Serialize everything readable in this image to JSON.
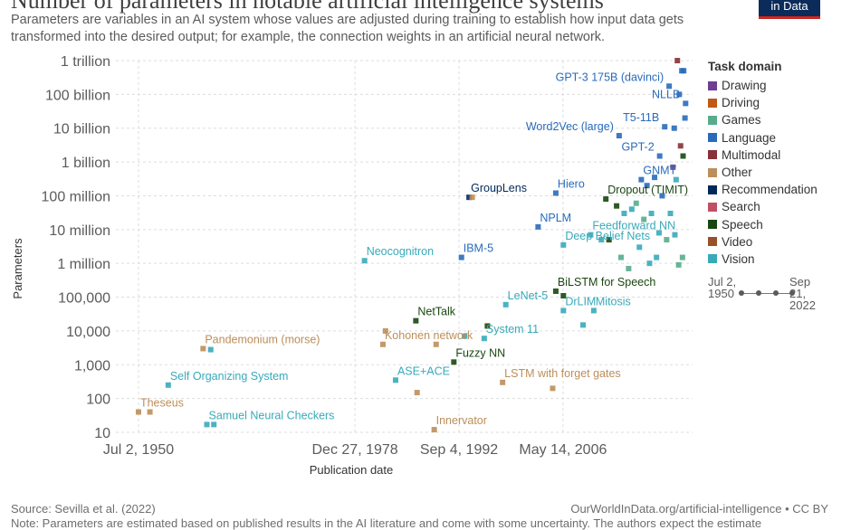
{
  "header": {
    "title": "Number of parameters in notable artificial intelligence systems",
    "subtitle": "Parameters are variables in an AI system whose values are adjusted during training to establish how input data gets transformed into the desired output; for example, the connection weights in an artificial neural network.",
    "logo_text": "in Data"
  },
  "chart_data": {
    "type": "scatter",
    "title": "Number of parameters in notable artificial intelligence systems",
    "xlabel": "Publication date",
    "ylabel": "Parameters",
    "log_y": true,
    "x_range": [
      "1948-01-01",
      "2023-06-01"
    ],
    "y_range": [
      10,
      1000000000000
    ],
    "x_ticks": [
      {
        "date": "1950-07-02",
        "label": "Jul 2, 1950"
      },
      {
        "date": "1978-12-27",
        "label": "Dec 27, 1978"
      },
      {
        "date": "1992-09-04",
        "label": "Sep 4, 1992"
      },
      {
        "date": "2006-05-14",
        "label": "May 14, 2006"
      }
    ],
    "y_ticks": [
      {
        "value": 10,
        "label": "10"
      },
      {
        "value": 100,
        "label": "100"
      },
      {
        "value": 1000,
        "label": "1,000"
      },
      {
        "value": 10000,
        "label": "10,000"
      },
      {
        "value": 100000,
        "label": "100,000"
      },
      {
        "value": 1000000,
        "label": "1 million"
      },
      {
        "value": 10000000,
        "label": "10 million"
      },
      {
        "value": 100000000,
        "label": "100 million"
      },
      {
        "value": 1000000000,
        "label": "1 billion"
      },
      {
        "value": 10000000000,
        "label": "10 billion"
      },
      {
        "value": 100000000000,
        "label": "100 billion"
      },
      {
        "value": 1000000000000,
        "label": "1 trillion"
      }
    ],
    "grid": true,
    "legend_position": "right",
    "domains": [
      {
        "name": "Drawing",
        "color": "#6d3e91"
      },
      {
        "name": "Driving",
        "color": "#c05917"
      },
      {
        "name": "Games",
        "color": "#58ac8c"
      },
      {
        "name": "Language",
        "color": "#286bbb"
      },
      {
        "name": "Multimodal",
        "color": "#883039"
      },
      {
        "name": "Other",
        "color": "#bc8e5a"
      },
      {
        "name": "Recommendation",
        "color": "#00295b"
      },
      {
        "name": "Search",
        "color": "#c15065"
      },
      {
        "name": "Speech",
        "color": "#18470f"
      },
      {
        "name": "Video",
        "color": "#9a5129"
      },
      {
        "name": "Vision",
        "color": "#38aaba"
      }
    ],
    "points": [
      {
        "date": "1950-07-02",
        "value": 40,
        "domain": "Other",
        "label": "Theseus"
      },
      {
        "date": "1952-01-01",
        "value": 40,
        "domain": "Other"
      },
      {
        "date": "1954-06-01",
        "value": 250,
        "domain": "Vision",
        "label": "Self Organizing System"
      },
      {
        "date": "1959-01-01",
        "value": 3000,
        "domain": "Other",
        "label": "Pandemonium (morse)"
      },
      {
        "date": "1959-07-01",
        "value": 17,
        "domain": "Vision",
        "label": "Samuel Neural Checkers"
      },
      {
        "date": "1960-01-01",
        "value": 2800,
        "domain": "Vision"
      },
      {
        "date": "1960-06-01",
        "value": 17,
        "domain": "Vision"
      },
      {
        "date": "1980-04-01",
        "value": 1200000,
        "domain": "Vision",
        "label": "Neocognitron"
      },
      {
        "date": "1982-09-01",
        "value": 4000,
        "domain": "Other",
        "label": "Kohonen network"
      },
      {
        "date": "1983-01-01",
        "value": 10000,
        "domain": "Other"
      },
      {
        "date": "1984-05-01",
        "value": 350,
        "domain": "Vision",
        "label": "ASE+ACE"
      },
      {
        "date": "1987-01-01",
        "value": 20000,
        "domain": "Speech",
        "label": "NetTalk"
      },
      {
        "date": "1987-03-01",
        "value": 150,
        "domain": "Other"
      },
      {
        "date": "1989-09-01",
        "value": 4000,
        "domain": "Other"
      },
      {
        "date": "1992-01-01",
        "value": 1200,
        "domain": "Speech",
        "label": "Fuzzy NN"
      },
      {
        "date": "1993-01-01",
        "value": 1500000,
        "domain": "Language",
        "label": "IBM-5"
      },
      {
        "date": "1993-06-01",
        "value": 7000,
        "domain": "Vision"
      },
      {
        "date": "1989-06-01",
        "value": 12,
        "domain": "Other",
        "label": "Innervator"
      },
      {
        "date": "1994-01-01",
        "value": 90000000,
        "domain": "Recommendation",
        "label": "GroupLens"
      },
      {
        "date": "1994-06-01",
        "value": 90000000,
        "domain": "Other"
      },
      {
        "date": "1996-01-01",
        "value": 6000,
        "domain": "Vision",
        "label": "System 11"
      },
      {
        "date": "1996-06-01",
        "value": 14000,
        "domain": "Speech"
      },
      {
        "date": "1998-11-01",
        "value": 60000,
        "domain": "Vision",
        "label": "LeNet-5"
      },
      {
        "date": "1998-06-01",
        "value": 300,
        "domain": "Other",
        "label": "LSTM with forget gates"
      },
      {
        "date": "2003-02-01",
        "value": 12000000,
        "domain": "Language",
        "label": "NPLM"
      },
      {
        "date": "2005-06-01",
        "value": 120000000,
        "domain": "Language",
        "label": "Hiero"
      },
      {
        "date": "2005-01-01",
        "value": 200,
        "domain": "Other"
      },
      {
        "date": "2005-06-01",
        "value": 150000,
        "domain": "Speech",
        "label": "BiLSTM for Speech"
      },
      {
        "date": "2006-06-01",
        "value": 40000,
        "domain": "Vision",
        "label": "DrLIM"
      },
      {
        "date": "2006-06-01",
        "value": 3500000,
        "domain": "Vision",
        "label": "Deep Belief Nets"
      },
      {
        "date": "2006-06-01",
        "value": 110000,
        "domain": "Speech"
      },
      {
        "date": "2009-01-01",
        "value": 15000,
        "domain": "Vision"
      },
      {
        "date": "2010-06-01",
        "value": 40000,
        "domain": "Vision",
        "label": "Mitosis"
      },
      {
        "date": "2010-01-01",
        "value": 7000000,
        "domain": "Vision",
        "label": "Feedforward NN"
      },
      {
        "date": "2012-01-01",
        "value": 80000000,
        "domain": "Speech",
        "label": "Dropout (TIMIT)"
      },
      {
        "date": "2013-10-01",
        "value": 6000000000,
        "domain": "Language",
        "label": "Word2Vec (large)"
      },
      {
        "date": "2016-09-01",
        "value": 300000000,
        "domain": "Language",
        "label": "GNMT"
      },
      {
        "date": "2019-02-01",
        "value": 1500000000,
        "domain": "Language",
        "label": "GPT-2"
      },
      {
        "date": "2019-10-01",
        "value": 11000000000,
        "domain": "Language",
        "label": "T5-11B"
      },
      {
        "date": "2020-05-01",
        "value": 175000000000,
        "domain": "Language",
        "label": "GPT-3 175B (davinci)"
      },
      {
        "date": "2022-07-01",
        "value": 54000000000,
        "domain": "Language",
        "label": "NLLB"
      },
      {
        "date": "2021-06-01",
        "value": 1000000000000,
        "domain": "Multimodal"
      },
      {
        "date": "2022-01-01",
        "value": 500000000000,
        "domain": "Language"
      },
      {
        "date": "2022-04-01",
        "value": 500000000000,
        "domain": "Language"
      },
      {
        "date": "2021-09-01",
        "value": 100000000000,
        "domain": "Language"
      },
      {
        "date": "2022-06-01",
        "value": 20000000000,
        "domain": "Language"
      },
      {
        "date": "2021-01-01",
        "value": 10000000000,
        "domain": "Language"
      },
      {
        "date": "2021-11-01",
        "value": 3000000000,
        "domain": "Multimodal"
      },
      {
        "date": "2022-03-01",
        "value": 1500000000,
        "domain": "Speech"
      },
      {
        "date": "2020-11-01",
        "value": 700000000,
        "domain": "Drawing"
      },
      {
        "date": "2021-04-01",
        "value": 300000000,
        "domain": "Vision"
      },
      {
        "date": "2019-06-01",
        "value": 100000000,
        "domain": "Language"
      },
      {
        "date": "2018-06-01",
        "value": 350000000,
        "domain": "Language"
      },
      {
        "date": "2017-06-01",
        "value": 200000000,
        "domain": "Language"
      },
      {
        "date": "2016-01-01",
        "value": 60000000,
        "domain": "Games"
      },
      {
        "date": "2015-06-01",
        "value": 40000000,
        "domain": "Vision"
      },
      {
        "date": "2014-06-01",
        "value": 30000000,
        "domain": "Vision"
      },
      {
        "date": "2013-06-01",
        "value": 50000000,
        "domain": "Speech"
      },
      {
        "date": "2017-01-01",
        "value": 20000000,
        "domain": "Games"
      },
      {
        "date": "2018-01-01",
        "value": 30000000,
        "domain": "Vision"
      },
      {
        "date": "2019-01-01",
        "value": 8000000,
        "domain": "Vision"
      },
      {
        "date": "2020-01-01",
        "value": 5000000,
        "domain": "Games"
      },
      {
        "date": "2016-06-01",
        "value": 3000000,
        "domain": "Vision"
      },
      {
        "date": "2014-01-01",
        "value": 1500000,
        "domain": "Games"
      },
      {
        "date": "2012-06-01",
        "value": 5000000,
        "domain": "Speech"
      },
      {
        "date": "2011-06-01",
        "value": 5000000,
        "domain": "Vision"
      },
      {
        "date": "2018-09-01",
        "value": 1500000,
        "domain": "Vision"
      },
      {
        "date": "2021-08-01",
        "value": 900000,
        "domain": "Games"
      },
      {
        "date": "2022-02-01",
        "value": 1500000,
        "domain": "Games"
      },
      {
        "date": "2015-01-01",
        "value": 700000,
        "domain": "Games"
      },
      {
        "date": "2017-10-01",
        "value": 1000000,
        "domain": "Vision"
      },
      {
        "date": "2020-07-01",
        "value": 30000000,
        "domain": "Vision"
      },
      {
        "date": "2021-02-01",
        "value": 7000000,
        "domain": "Vision"
      }
    ],
    "annotations": [
      {
        "text": "GPT-3 175B (davinci)",
        "date": "2020-05-01",
        "value": 175000000000,
        "color": "#286bbb",
        "anchor": "end"
      },
      {
        "text": "NLLB",
        "date": "2022-07-01",
        "value": 54000000000,
        "color": "#286bbb",
        "anchor": "end"
      },
      {
        "text": "T5-11B",
        "date": "2019-10-01",
        "value": 11000000000,
        "color": "#286bbb",
        "anchor": "end"
      },
      {
        "text": "Word2Vec (large)",
        "date": "2013-10-01",
        "value": 6000000000,
        "color": "#286bbb",
        "anchor": "end"
      },
      {
        "text": "GPT-2",
        "date": "2019-02-01",
        "value": 1500000000,
        "color": "#286bbb",
        "anchor": "end"
      },
      {
        "text": "GNMT",
        "date": "2016-09-01",
        "value": 300000000,
        "color": "#286bbb",
        "anchor": "start"
      },
      {
        "text": "GroupLens",
        "date": "1994-01-01",
        "value": 90000000,
        "color": "#00295b",
        "anchor": "start"
      },
      {
        "text": "Hiero",
        "date": "2005-06-01",
        "value": 120000000,
        "color": "#286bbb",
        "anchor": "start"
      },
      {
        "text": "Dropout (TIMIT)",
        "date": "2012-01-01",
        "value": 80000000,
        "color": "#18470f",
        "anchor": "start"
      },
      {
        "text": "NPLM",
        "date": "2003-02-01",
        "value": 12000000,
        "color": "#286bbb",
        "anchor": "start"
      },
      {
        "text": "Feedforward NN",
        "date": "2010-01-01",
        "value": 7000000,
        "color": "#38aaba",
        "anchor": "start"
      },
      {
        "text": "Neocognitron",
        "date": "1980-04-01",
        "value": 1200000,
        "color": "#38aaba",
        "anchor": "start"
      },
      {
        "text": "IBM-5",
        "date": "1993-01-01",
        "value": 1500000,
        "color": "#286bbb",
        "anchor": "start"
      },
      {
        "text": "Deep Belief Nets",
        "date": "2006-06-01",
        "value": 3500000,
        "color": "#38aaba",
        "anchor": "start"
      },
      {
        "text": "BiLSTM for Speech",
        "date": "2005-06-01",
        "value": 150000,
        "color": "#18470f",
        "anchor": "start"
      },
      {
        "text": "LeNet-5",
        "date": "1998-11-01",
        "value": 60000,
        "color": "#38aaba",
        "anchor": "start"
      },
      {
        "text": "DrLIM",
        "date": "2006-06-01",
        "value": 40000,
        "color": "#38aaba",
        "anchor": "start"
      },
      {
        "text": "Mitosis",
        "date": "2010-06-01",
        "value": 40000,
        "color": "#38aaba",
        "anchor": "start"
      },
      {
        "text": "NetTalk",
        "date": "1987-01-01",
        "value": 20000,
        "color": "#18470f",
        "anchor": "start"
      },
      {
        "text": "Kohonen network",
        "date": "1982-09-01",
        "value": 4000,
        "color": "#bc8e5a",
        "anchor": "start"
      },
      {
        "text": "System 11",
        "date": "1996-01-01",
        "value": 6000,
        "color": "#38aaba",
        "anchor": "start"
      },
      {
        "text": "Pandemonium (morse)",
        "date": "1959-01-01",
        "value": 3000,
        "color": "#bc8e5a",
        "anchor": "start"
      },
      {
        "text": "Fuzzy NN",
        "date": "1992-01-01",
        "value": 1200,
        "color": "#18470f",
        "anchor": "start"
      },
      {
        "text": "ASE+ACE",
        "date": "1984-05-01",
        "value": 350,
        "color": "#38aaba",
        "anchor": "start"
      },
      {
        "text": "LSTM with forget gates",
        "date": "1998-06-01",
        "value": 300,
        "color": "#bc8e5a",
        "anchor": "start"
      },
      {
        "text": "Self Organizing System",
        "date": "1954-06-01",
        "value": 250,
        "color": "#38aaba",
        "anchor": "start"
      },
      {
        "text": "Theseus",
        "date": "1950-07-02",
        "value": 40,
        "color": "#bc8e5a",
        "anchor": "start"
      },
      {
        "text": "Samuel Neural Checkers",
        "date": "1959-07-01",
        "value": 17,
        "color": "#38aaba",
        "anchor": "start"
      },
      {
        "text": "Innervator",
        "date": "1989-06-01",
        "value": 12,
        "color": "#bc8e5a",
        "anchor": "start"
      }
    ]
  },
  "legend": {
    "title": "Task domain",
    "items": [
      "Drawing",
      "Driving",
      "Games",
      "Language",
      "Multimodal",
      "Other",
      "Recommendation",
      "Search",
      "Speech",
      "Video",
      "Vision"
    ]
  },
  "timeline": {
    "start_label": "Jul 2, 1950",
    "end_label": "Sep 21, 2022"
  },
  "footer": {
    "source": "Source: Sevilla et al. (2022)",
    "credit": "OurWorldInData.org/artificial-intelligence • CC BY",
    "note": "Note: Parameters are estimated based on published results in the AI literature and come with some uncertainty. The authors expect the estimate"
  }
}
